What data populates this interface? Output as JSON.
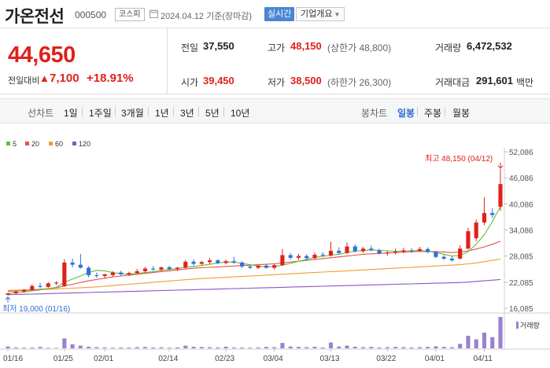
{
  "header": {
    "title": "가온전선",
    "code": "000500",
    "market": "코스피",
    "date": "2024.04.12",
    "basis": "기준(장마감)",
    "realtime_label": "실시간",
    "overview_label": "기업개요"
  },
  "quote": {
    "price": "44,650",
    "change_label": "전일대비",
    "change_value": "7,100",
    "change_pct": "+18.91%",
    "prev_close_label": "전일",
    "prev_close": "37,550",
    "high_label": "고가",
    "high": "48,150",
    "high_sub": "(상한가 48,800)",
    "volume_label": "거래량",
    "volume": "6,472,532",
    "open_label": "시가",
    "open": "39,450",
    "low_label": "저가",
    "low": "38,500",
    "low_sub": "(하한가 26,300)",
    "amount_label": "거래대금",
    "amount": "291,601",
    "amount_unit": "백만"
  },
  "period": {
    "line_label": "선차트",
    "line_items": [
      "1일",
      "1주일",
      "3개월",
      "1년",
      "3년",
      "5년",
      "10년"
    ],
    "candle_label": "봉차트",
    "candle_items": [
      "일봉",
      "주봉",
      "월봉"
    ],
    "active_candle": "일봉"
  },
  "colors": {
    "up": "#e0211a",
    "down": "#2f6fd6",
    "ma5": "#5cbf3c",
    "ma20": "#e8504a",
    "ma60": "#f29b2e",
    "ma120": "#8a56c9",
    "volume": "#9b80cf",
    "realtime_bg": "#4a85d6"
  },
  "chart_data": {
    "type": "candlestick",
    "legend": [
      {
        "name": "5",
        "color": "#5cbf3c"
      },
      {
        "name": "20",
        "color": "#e8504a"
      },
      {
        "name": "60",
        "color": "#f29b2e"
      },
      {
        "name": "120",
        "color": "#8a56c9"
      }
    ],
    "y_ticks": [
      "52,086",
      "46,086",
      "40,086",
      "34,086",
      "28,085",
      "22,085",
      "16,085"
    ],
    "y_tick_values": [
      52086,
      46086,
      40086,
      34086,
      28085,
      22085,
      16085
    ],
    "ylim": [
      16085,
      52086
    ],
    "x_ticks": [
      "01/16",
      "01/25",
      "02/01",
      "02/14",
      "02/23",
      "03/04",
      "03/13",
      "03/22",
      "04/01",
      "04/11"
    ],
    "x_tick_index": [
      0,
      7,
      12,
      20,
      27,
      33,
      40,
      47,
      53,
      59
    ],
    "max_label": "최고 48,150 (04/12)",
    "min_label": "최저 19,000 (01/16)",
    "volume_label": "거래량",
    "candles": [
      {
        "o": 19200,
        "h": 19600,
        "l": 19000,
        "c": 19500
      },
      {
        "o": 19500,
        "h": 20100,
        "l": 19300,
        "c": 19900
      },
      {
        "o": 19900,
        "h": 20500,
        "l": 19700,
        "c": 20300
      },
      {
        "o": 20300,
        "h": 21600,
        "l": 20100,
        "c": 21200
      },
      {
        "o": 21200,
        "h": 21900,
        "l": 20700,
        "c": 21000
      },
      {
        "o": 21000,
        "h": 22100,
        "l": 20800,
        "c": 21800
      },
      {
        "o": 21800,
        "h": 22300,
        "l": 21400,
        "c": 22000
      },
      {
        "o": 21200,
        "h": 27400,
        "l": 21000,
        "c": 26600
      },
      {
        "o": 26600,
        "h": 27500,
        "l": 25500,
        "c": 26100
      },
      {
        "o": 26100,
        "h": 28600,
        "l": 25200,
        "c": 25400
      },
      {
        "o": 25400,
        "h": 25800,
        "l": 23200,
        "c": 23700
      },
      {
        "o": 23700,
        "h": 24300,
        "l": 23100,
        "c": 23500
      },
      {
        "o": 23500,
        "h": 24000,
        "l": 23000,
        "c": 23900
      },
      {
        "o": 23700,
        "h": 24600,
        "l": 23400,
        "c": 24300
      },
      {
        "o": 24300,
        "h": 24700,
        "l": 23600,
        "c": 23900
      },
      {
        "o": 23900,
        "h": 24500,
        "l": 23500,
        "c": 24200
      },
      {
        "o": 24200,
        "h": 25100,
        "l": 24000,
        "c": 24600
      },
      {
        "o": 24600,
        "h": 25600,
        "l": 24300,
        "c": 25200
      },
      {
        "o": 25200,
        "h": 25800,
        "l": 24700,
        "c": 25000
      },
      {
        "o": 25000,
        "h": 25700,
        "l": 24600,
        "c": 25500
      },
      {
        "o": 25500,
        "h": 25900,
        "l": 24900,
        "c": 25100
      },
      {
        "o": 25100,
        "h": 25600,
        "l": 24700,
        "c": 25400
      },
      {
        "o": 25400,
        "h": 27200,
        "l": 25200,
        "c": 26800
      },
      {
        "o": 26800,
        "h": 27300,
        "l": 25900,
        "c": 26300
      },
      {
        "o": 26300,
        "h": 27000,
        "l": 26000,
        "c": 26700
      },
      {
        "o": 26700,
        "h": 27600,
        "l": 26300,
        "c": 27100
      },
      {
        "o": 27100,
        "h": 27400,
        "l": 26200,
        "c": 26500
      },
      {
        "o": 26500,
        "h": 27300,
        "l": 26200,
        "c": 26900
      },
      {
        "o": 26900,
        "h": 27900,
        "l": 26300,
        "c": 26600
      },
      {
        "o": 26600,
        "h": 26900,
        "l": 25300,
        "c": 25700
      },
      {
        "o": 25700,
        "h": 26100,
        "l": 25100,
        "c": 25400
      },
      {
        "o": 25400,
        "h": 26000,
        "l": 25100,
        "c": 25900
      },
      {
        "o": 25900,
        "h": 26300,
        "l": 25200,
        "c": 25400
      },
      {
        "o": 25400,
        "h": 26400,
        "l": 25000,
        "c": 26000
      },
      {
        "o": 26000,
        "h": 29700,
        "l": 25800,
        "c": 28300
      },
      {
        "o": 28300,
        "h": 28800,
        "l": 27300,
        "c": 27700
      },
      {
        "o": 27700,
        "h": 28600,
        "l": 27200,
        "c": 28100
      },
      {
        "o": 28100,
        "h": 28500,
        "l": 27100,
        "c": 27600
      },
      {
        "o": 27600,
        "h": 28900,
        "l": 27300,
        "c": 28400
      },
      {
        "o": 28400,
        "h": 29000,
        "l": 27900,
        "c": 28200
      },
      {
        "o": 28200,
        "h": 31400,
        "l": 28000,
        "c": 29300
      },
      {
        "o": 29300,
        "h": 30100,
        "l": 28500,
        "c": 28800
      },
      {
        "o": 28800,
        "h": 31200,
        "l": 28600,
        "c": 30300
      },
      {
        "o": 30300,
        "h": 30800,
        "l": 28900,
        "c": 29200
      },
      {
        "o": 29200,
        "h": 30200,
        "l": 28800,
        "c": 29800
      },
      {
        "o": 29800,
        "h": 30500,
        "l": 29200,
        "c": 29400
      },
      {
        "o": 29400,
        "h": 29800,
        "l": 28500,
        "c": 28700
      },
      {
        "o": 28700,
        "h": 29300,
        "l": 28200,
        "c": 28900
      },
      {
        "o": 28900,
        "h": 29800,
        "l": 28500,
        "c": 29100
      },
      {
        "o": 29100,
        "h": 30000,
        "l": 28700,
        "c": 29400
      },
      {
        "o": 29400,
        "h": 29900,
        "l": 28800,
        "c": 29300
      },
      {
        "o": 29300,
        "h": 30200,
        "l": 29000,
        "c": 29700
      },
      {
        "o": 29700,
        "h": 30100,
        "l": 28800,
        "c": 29000
      },
      {
        "o": 29000,
        "h": 29300,
        "l": 27600,
        "c": 27900
      },
      {
        "o": 27900,
        "h": 28300,
        "l": 27200,
        "c": 27500
      },
      {
        "o": 27500,
        "h": 28000,
        "l": 26800,
        "c": 27100
      },
      {
        "o": 27500,
        "h": 30600,
        "l": 27300,
        "c": 29800
      },
      {
        "o": 29800,
        "h": 34600,
        "l": 29600,
        "c": 33800
      },
      {
        "o": 32200,
        "h": 36500,
        "l": 31500,
        "c": 35800
      },
      {
        "o": 35800,
        "h": 41600,
        "l": 35200,
        "c": 38000
      },
      {
        "o": 38000,
        "h": 39100,
        "l": 36800,
        "c": 37550
      },
      {
        "o": 39450,
        "h": 48150,
        "l": 38500,
        "c": 44650
      }
    ],
    "volumes": [
      40,
      20,
      15,
      18,
      30,
      12,
      10,
      220,
      90,
      60,
      35,
      25,
      20,
      15,
      20,
      18,
      25,
      30,
      20,
      22,
      15,
      20,
      60,
      35,
      30,
      25,
      20,
      35,
      20,
      18,
      15,
      20,
      30,
      25,
      120,
      40,
      30,
      25,
      35,
      20,
      130,
      40,
      60,
      35,
      25,
      30,
      20,
      25,
      30,
      25,
      20,
      25,
      30,
      45,
      30,
      25,
      100,
      280,
      200,
      350,
      250,
      700
    ],
    "ma5": [
      19500,
      19650,
      19800,
      20100,
      20300,
      20600,
      20900,
      22000,
      22800,
      23500,
      24300,
      24800,
      24700,
      24300,
      24000,
      23900,
      24100,
      24300,
      24500,
      24800,
      25000,
      25200,
      25500,
      25700,
      25900,
      26200,
      26500,
      26700,
      26700,
      26400,
      26100,
      25800,
      25600,
      25700,
      26000,
      26400,
      26900,
      27300,
      27800,
      28000,
      28300,
      28500,
      28900,
      29200,
      29400,
      29500,
      29400,
      29300,
      29200,
      29200,
      29300,
      29400,
      29200,
      28900,
      28500,
      28100,
      28200,
      29100,
      30800,
      33000,
      36000,
      39500
    ],
    "ma20": [
      20000,
      20050,
      20150,
      20300,
      20450,
      20600,
      20800,
      21200,
      21600,
      22000,
      22400,
      22700,
      23000,
      23300,
      23500,
      23700,
      23900,
      24100,
      24300,
      24500,
      24700,
      24900,
      25100,
      25300,
      25400,
      25500,
      25600,
      25700,
      25800,
      25900,
      26000,
      26100,
      26200,
      26300,
      26500,
      26700,
      26900,
      27100,
      27300,
      27500,
      27700,
      27900,
      28100,
      28300,
      28500,
      28600,
      28700,
      28800,
      28900,
      29000,
      29100,
      29150,
      29150,
      29100,
      29000,
      28900,
      29000,
      29300,
      29700,
      30200,
      30800,
      31500
    ],
    "ma60": [
      20200,
      20250,
      20300,
      20350,
      20400,
      20450,
      20500,
      20600,
      20700,
      20800,
      20900,
      21000,
      21150,
      21300,
      21450,
      21600,
      21750,
      21900,
      22050,
      22200,
      22350,
      22500,
      22650,
      22800,
      22900,
      23000,
      23100,
      23200,
      23300,
      23400,
      23500,
      23600,
      23700,
      23800,
      23900,
      24000,
      24100,
      24200,
      24300,
      24400,
      24500,
      24600,
      24700,
      24800,
      24900,
      25000,
      25100,
      25200,
      25300,
      25400,
      25500,
      25600,
      25700,
      25800,
      25900,
      26000,
      26100,
      26300,
      26500,
      26800,
      27100,
      27400
    ],
    "ma120": [
      19200,
      19250,
      19300,
      19350,
      19400,
      19450,
      19500,
      19550,
      19600,
      19650,
      19700,
      19750,
      19800,
      19850,
      19900,
      19950,
      20000,
      20050,
      20100,
      20150,
      20200,
      20250,
      20300,
      20350,
      20400,
      20450,
      20500,
      20550,
      20600,
      20650,
      20700,
      20750,
      20800,
      20850,
      20900,
      20950,
      21000,
      21050,
      21100,
      21150,
      21200,
      21250,
      21300,
      21350,
      21400,
      21450,
      21500,
      21550,
      21600,
      21650,
      21700,
      21750,
      21800,
      21850,
      21900,
      21950,
      22000,
      22100,
      22250,
      22400,
      22550,
      22700
    ]
  }
}
